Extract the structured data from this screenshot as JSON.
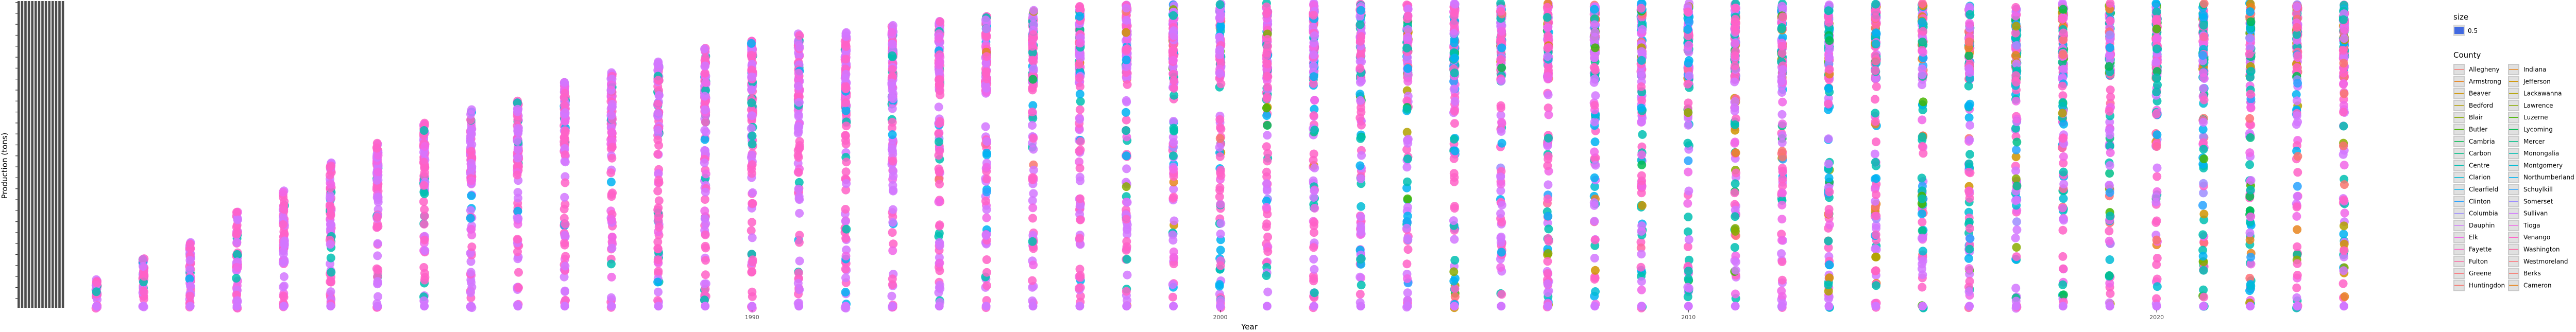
{
  "chart_data": {
    "type": "scatter",
    "title": "",
    "xlabel": "Year",
    "ylabel": "Production (tons)",
    "x_ticks": [
      1990,
      2000,
      2010,
      2020
    ],
    "x_tick_labels": [
      "1990",
      "2000",
      "2010",
      "2020"
    ],
    "xlim": [
      1974.4,
      2025.6
    ],
    "ylim": [
      0,
      1
    ],
    "y_tick_labels_legible": false,
    "grid": false,
    "legend_position": "right",
    "years": [
      1976,
      1977,
      1978,
      1979,
      1980,
      1981,
      1982,
      1983,
      1984,
      1985,
      1986,
      1987,
      1988,
      1989,
      1990,
      1991,
      1992,
      1993,
      1994,
      1995,
      1996,
      1997,
      1998,
      1999,
      2000,
      2001,
      2002,
      2003,
      2004,
      2005,
      2006,
      2007,
      2008,
      2009,
      2010,
      2011,
      2012,
      2013,
      2014,
      2015,
      2016,
      2017,
      2018,
      2019,
      2020,
      2021,
      2022,
      2023,
      2024
    ],
    "column_tops": [
      0.1,
      0.17,
      0.23,
      0.32,
      0.39,
      0.48,
      0.55,
      0.61,
      0.66,
      0.7,
      0.75,
      0.78,
      0.81,
      0.86,
      0.88,
      0.9,
      0.91,
      0.93,
      0.95,
      0.96,
      0.98,
      0.99,
      1.0,
      1.0,
      1.0,
      1.0,
      1.0,
      1.0,
      1.0,
      1.0,
      1.0,
      1.0,
      1.0,
      1.0,
      1.0,
      1.0,
      1.0,
      1.0,
      1.0,
      1.0,
      1.0,
      1.0,
      1.0,
      1.0,
      1.0,
      1.0,
      1.0,
      1.0,
      1.0
    ],
    "size_legend": {
      "title": "size",
      "value": "0.5",
      "color": "#4169E1"
    },
    "color_legend": {
      "title": "County",
      "columns": [
        [
          "Allegheny",
          "Armstrong",
          "Beaver",
          "Bedford",
          "Blair",
          "Butler",
          "Cambria",
          "Carbon",
          "Centre",
          "Clarion",
          "Clearfield",
          "Clinton",
          "Columbia",
          "Dauphin",
          "Elk",
          "Fayette",
          "Fulton",
          "Greene",
          "Huntingdon"
        ],
        [
          "Indiana",
          "Jefferson",
          "Lackawanna",
          "Lawrence",
          "Luzerne",
          "Lycoming",
          "Mercer",
          "Monongalia",
          "Montgomery",
          "Northumberland",
          "Schuylkill",
          "Somerset",
          "Sullivan",
          "Tioga",
          "Venango",
          "Washington",
          "Westmoreland",
          "Berks",
          "Cameron"
        ]
      ]
    },
    "palette": [
      "#F8766D",
      "#E7851E",
      "#D09400",
      "#B2A100",
      "#89AC00",
      "#45B500",
      "#00BC51",
      "#00C087",
      "#00C0B2",
      "#00BCD6",
      "#00B3F2",
      "#29A3FF",
      "#9C8DFF",
      "#D277FF",
      "#F166E8",
      "#FF61C7",
      "#FF66A0",
      "#FF6E75"
    ]
  }
}
